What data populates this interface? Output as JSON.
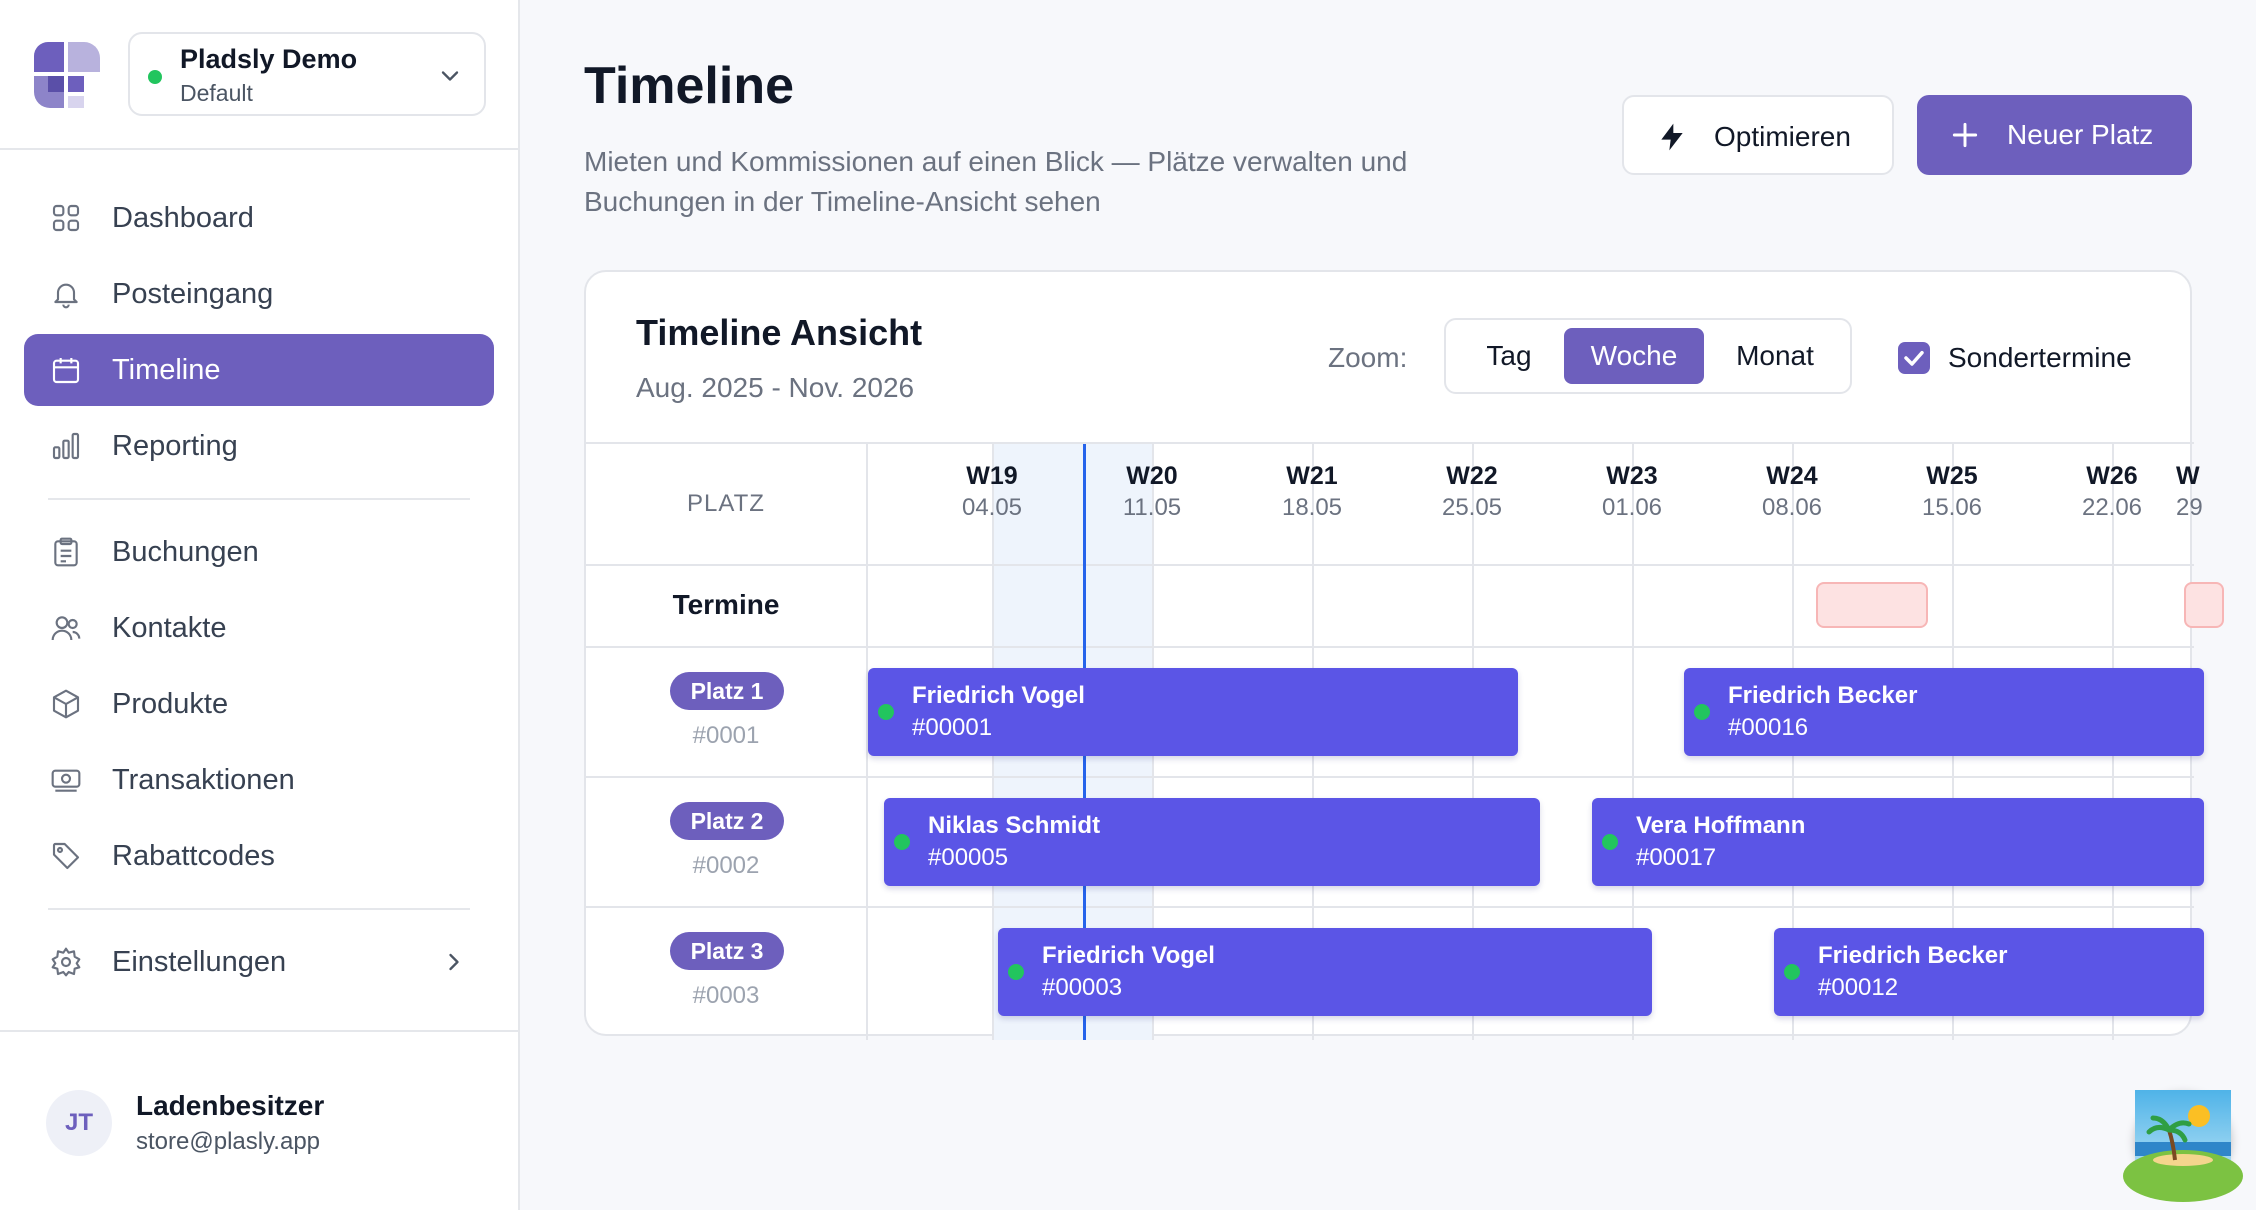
{
  "workspace": {
    "name": "Pladsly Demo",
    "env": "Default",
    "status_color": "#22c55e"
  },
  "sidebar": {
    "items": [
      {
        "label": "Dashboard",
        "icon": "grid-icon"
      },
      {
        "label": "Posteingang",
        "icon": "bell-icon"
      },
      {
        "label": "Timeline",
        "icon": "calendar-icon",
        "active": true
      },
      {
        "label": "Reporting",
        "icon": "bar-chart-icon"
      },
      {
        "label": "Buchungen",
        "icon": "clipboard-icon"
      },
      {
        "label": "Kontakte",
        "icon": "users-icon"
      },
      {
        "label": "Produkte",
        "icon": "box-icon"
      },
      {
        "label": "Transaktionen",
        "icon": "banknote-icon"
      },
      {
        "label": "Rabattcodes",
        "icon": "tag-icon"
      },
      {
        "label": "Einstellungen",
        "icon": "gear-icon"
      }
    ]
  },
  "user": {
    "initials": "JT",
    "name": "Ladenbesitzer",
    "email": "store@plasly.app"
  },
  "header": {
    "title": "Timeline",
    "subtitle": "Mieten und Kommissionen auf einen Blick — Plätze verwalten und Buchungen in der Timeline-Ansicht sehen",
    "optimize_label": "Optimieren",
    "new_label": "Neuer Platz"
  },
  "card": {
    "title": "Timeline Ansicht",
    "range": "Aug. 2025 - Nov. 2026",
    "zoom_label": "Zoom:",
    "zoom_options": [
      "Tag",
      "Woche",
      "Monat"
    ],
    "zoom_selected": "Woche",
    "special_label": "Sondertermine",
    "special_checked": true
  },
  "timeline": {
    "platz_header": "PLATZ",
    "termine_label": "Termine",
    "weeks": [
      {
        "week": "W19",
        "date": "04.05"
      },
      {
        "week": "W20",
        "date": "11.05"
      },
      {
        "week": "W21",
        "date": "18.05"
      },
      {
        "week": "W22",
        "date": "25.05"
      },
      {
        "week": "W23",
        "date": "01.06"
      },
      {
        "week": "W24",
        "date": "08.06"
      },
      {
        "week": "W25",
        "date": "15.06"
      },
      {
        "week": "W26",
        "date": "22.06"
      },
      {
        "week": "W",
        "date": "29"
      }
    ],
    "current_week": "W20",
    "platze": [
      {
        "label": "Platz 1",
        "id": "#0001"
      },
      {
        "label": "Platz 2",
        "id": "#0002"
      },
      {
        "label": "Platz 3",
        "id": "#0003"
      }
    ],
    "bookings": [
      {
        "name": "Friedrich Vogel",
        "id": "#00001"
      },
      {
        "name": "Friedrich Becker",
        "id": "#00016"
      },
      {
        "name": "Niklas Schmidt",
        "id": "#00005"
      },
      {
        "name": "Vera Hoffmann",
        "id": "#00017"
      },
      {
        "name": "Friedrich Vogel",
        "id": "#00003"
      },
      {
        "name": "Friedrich Becker",
        "id": "#00012"
      }
    ]
  },
  "colors": {
    "accent": "#6d5fbd",
    "booking": "#5b55e6",
    "today_line": "#2563eb",
    "termin": "#fde2e2"
  }
}
